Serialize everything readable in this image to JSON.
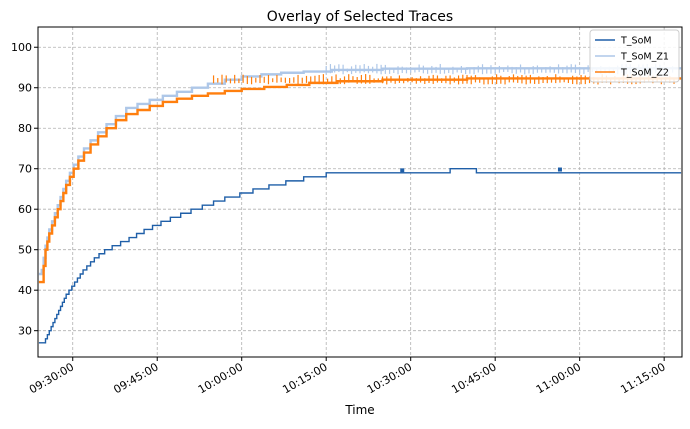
{
  "chart_data": {
    "type": "line",
    "title": "Overlay of Selected Traces",
    "xlabel": "Time",
    "ylabel": "",
    "x_tick_labels": [
      "09:30:00",
      "09:45:00",
      "10:00:00",
      "10:15:00",
      "10:30:00",
      "10:45:00",
      "11:00:00",
      "11:15:00"
    ],
    "y_ticks": [
      30,
      40,
      50,
      60,
      70,
      80,
      90,
      100
    ],
    "xlim": [
      "09:23:50",
      "11:18:10"
    ],
    "ylim": [
      23.5,
      105
    ],
    "grid": true,
    "legend_position": "top-right",
    "series": [
      {
        "name": "T_SoM",
        "color": "#1f5fa8",
        "points": [
          [
            "09:24:00",
            27
          ],
          [
            "09:24:40",
            27
          ],
          [
            "09:25:10",
            28
          ],
          [
            "09:25:30",
            29
          ],
          [
            "09:25:50",
            30
          ],
          [
            "09:26:10",
            31
          ],
          [
            "09:26:30",
            32
          ],
          [
            "09:26:50",
            33
          ],
          [
            "09:27:10",
            34
          ],
          [
            "09:27:30",
            35
          ],
          [
            "09:27:50",
            36
          ],
          [
            "09:28:10",
            37
          ],
          [
            "09:28:30",
            38
          ],
          [
            "09:28:50",
            39
          ],
          [
            "09:29:20",
            40
          ],
          [
            "09:29:50",
            41
          ],
          [
            "09:30:20",
            42
          ],
          [
            "09:30:50",
            43
          ],
          [
            "09:31:20",
            44
          ],
          [
            "09:31:50",
            45
          ],
          [
            "09:32:30",
            46
          ],
          [
            "09:33:10",
            47
          ],
          [
            "09:33:50",
            48
          ],
          [
            "09:34:40",
            49
          ],
          [
            "09:35:40",
            50
          ],
          [
            "09:37:00",
            51
          ],
          [
            "09:38:30",
            52
          ],
          [
            "09:40:00",
            53
          ],
          [
            "09:41:20",
            54
          ],
          [
            "09:42:40",
            55
          ],
          [
            "09:44:10",
            56
          ],
          [
            "09:45:40",
            57
          ],
          [
            "09:47:20",
            58
          ],
          [
            "09:49:10",
            59
          ],
          [
            "09:51:00",
            60
          ],
          [
            "09:53:00",
            61
          ],
          [
            "09:55:00",
            62
          ],
          [
            "09:57:00",
            63
          ],
          [
            "09:59:40",
            64
          ],
          [
            "10:02:00",
            65
          ],
          [
            "10:04:50",
            66
          ],
          [
            "10:07:50",
            67
          ],
          [
            "10:11:00",
            68
          ],
          [
            "10:15:00",
            69
          ],
          [
            "10:33:00",
            69
          ],
          [
            "10:37:00",
            70
          ],
          [
            "10:41:40",
            69
          ],
          [
            "11:18:00",
            69
          ]
        ],
        "markers": [
          [
            "10:28:30",
            69.6
          ],
          [
            "10:56:30",
            69.8
          ]
        ]
      },
      {
        "name": "T_SoM_Z1",
        "color": "#aec7e8",
        "points": [
          [
            "09:24:00",
            44
          ],
          [
            "09:24:30",
            45
          ],
          [
            "09:24:50",
            48
          ],
          [
            "09:25:10",
            51
          ],
          [
            "09:25:30",
            53
          ],
          [
            "09:25:50",
            55
          ],
          [
            "09:26:20",
            57
          ],
          [
            "09:26:50",
            59
          ],
          [
            "09:27:20",
            61
          ],
          [
            "09:27:50",
            63
          ],
          [
            "09:28:20",
            65
          ],
          [
            "09:28:50",
            67
          ],
          [
            "09:29:30",
            69
          ],
          [
            "09:30:10",
            71
          ],
          [
            "09:31:00",
            73
          ],
          [
            "09:32:00",
            75
          ],
          [
            "09:33:10",
            77
          ],
          [
            "09:34:30",
            79
          ],
          [
            "09:36:00",
            81
          ],
          [
            "09:37:40",
            83
          ],
          [
            "09:39:30",
            85
          ],
          [
            "09:41:30",
            86
          ],
          [
            "09:43:40",
            87
          ],
          [
            "09:46:00",
            88
          ],
          [
            "09:48:30",
            89
          ],
          [
            "09:51:10",
            90
          ],
          [
            "09:54:00",
            91
          ],
          [
            "09:57:00",
            92
          ],
          [
            "10:00:00",
            92.8
          ],
          [
            "10:03:30",
            93.3
          ],
          [
            "10:07:00",
            93.7
          ],
          [
            "10:11:00",
            94
          ],
          [
            "10:16:00",
            94.4
          ],
          [
            "10:25:00",
            94.7
          ],
          [
            "10:40:00",
            94.8
          ],
          [
            "11:00:00",
            94.8
          ],
          [
            "11:18:00",
            94.8
          ]
        ],
        "spikes_range": [
          "10:15:00",
          "11:17:00"
        ],
        "spikes_band": [
          93.3,
          95.9
        ]
      },
      {
        "name": "T_SoM_Z2",
        "color": "#ff7f0e",
        "points": [
          [
            "09:24:00",
            42
          ],
          [
            "09:24:30",
            42
          ],
          [
            "09:24:50",
            46
          ],
          [
            "09:25:10",
            50
          ],
          [
            "09:25:30",
            52
          ],
          [
            "09:25:50",
            54
          ],
          [
            "09:26:20",
            56
          ],
          [
            "09:26:50",
            58
          ],
          [
            "09:27:20",
            60
          ],
          [
            "09:27:50",
            62
          ],
          [
            "09:28:20",
            64
          ],
          [
            "09:28:50",
            66
          ],
          [
            "09:29:30",
            68
          ],
          [
            "09:30:10",
            70
          ],
          [
            "09:31:00",
            72
          ],
          [
            "09:32:00",
            74
          ],
          [
            "09:33:10",
            76
          ],
          [
            "09:34:30",
            78
          ],
          [
            "09:36:00",
            80
          ],
          [
            "09:37:40",
            82
          ],
          [
            "09:39:30",
            83.5
          ],
          [
            "09:41:30",
            84.5
          ],
          [
            "09:43:40",
            85.5
          ],
          [
            "09:46:00",
            86.5
          ],
          [
            "09:48:30",
            87.3
          ],
          [
            "09:51:10",
            88
          ],
          [
            "09:54:00",
            88.6
          ],
          [
            "09:57:00",
            89.2
          ],
          [
            "10:00:00",
            89.7
          ],
          [
            "10:04:00",
            90.2
          ],
          [
            "10:08:00",
            90.7
          ],
          [
            "10:12:00",
            91.2
          ],
          [
            "10:17:00",
            91.6
          ],
          [
            "10:25:00",
            92
          ],
          [
            "10:40:00",
            92.3
          ],
          [
            "11:00:00",
            92.3
          ],
          [
            "11:18:00",
            92.3
          ]
        ],
        "spikes_range": [
          "09:55:00",
          "11:17:00"
        ],
        "spikes_band": [
          90.8,
          93.4
        ]
      }
    ]
  }
}
